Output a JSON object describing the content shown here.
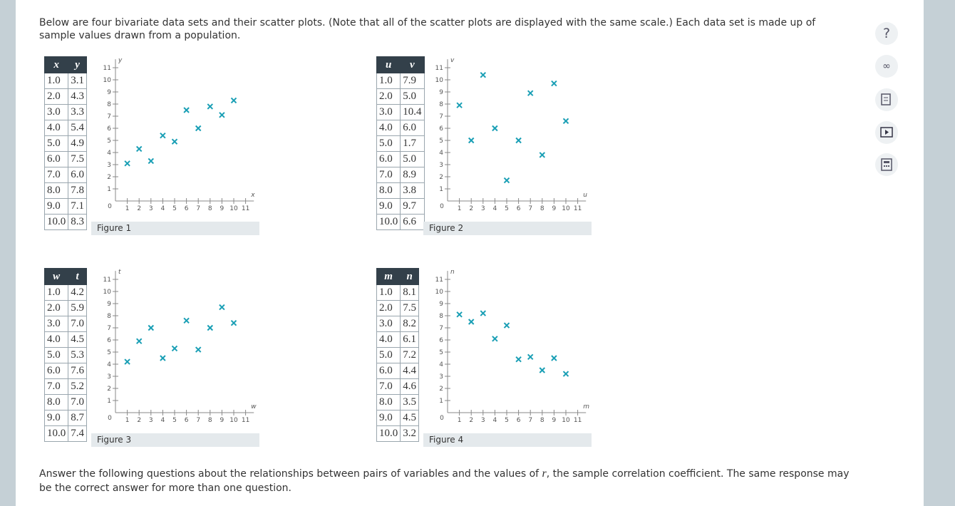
{
  "intro": "Below are four bivariate data sets and their scatter plots. (Note that all of the scatter plots are displayed with the same scale.) Each data set is made up of sample values drawn from a population.",
  "axis": {
    "lim": [
      0,
      11.7
    ],
    "ticks": [
      0,
      1,
      2,
      3,
      4,
      5,
      6,
      7,
      8,
      9,
      10,
      11
    ]
  },
  "figures": [
    {
      "columns": [
        "x",
        "y"
      ],
      "rows": [
        [
          "1.0",
          "3.1"
        ],
        [
          "2.0",
          "4.3"
        ],
        [
          "3.0",
          "3.3"
        ],
        [
          "4.0",
          "5.4"
        ],
        [
          "5.0",
          "4.9"
        ],
        [
          "6.0",
          "7.5"
        ],
        [
          "7.0",
          "6.0"
        ],
        [
          "8.0",
          "7.8"
        ],
        [
          "9.0",
          "7.1"
        ],
        [
          "10.0",
          "8.3"
        ]
      ],
      "caption": "Figure 1"
    },
    {
      "columns": [
        "u",
        "v"
      ],
      "rows": [
        [
          "1.0",
          "7.9"
        ],
        [
          "2.0",
          "5.0"
        ],
        [
          "3.0",
          "10.4"
        ],
        [
          "4.0",
          "6.0"
        ],
        [
          "5.0",
          "1.7"
        ],
        [
          "6.0",
          "5.0"
        ],
        [
          "7.0",
          "8.9"
        ],
        [
          "8.0",
          "3.8"
        ],
        [
          "9.0",
          "9.7"
        ],
        [
          "10.0",
          "6.6"
        ]
      ],
      "caption": "Figure 2"
    },
    {
      "columns": [
        "w",
        "t"
      ],
      "rows": [
        [
          "1.0",
          "4.2"
        ],
        [
          "2.0",
          "5.9"
        ],
        [
          "3.0",
          "7.0"
        ],
        [
          "4.0",
          "4.5"
        ],
        [
          "5.0",
          "5.3"
        ],
        [
          "6.0",
          "7.6"
        ],
        [
          "7.0",
          "5.2"
        ],
        [
          "8.0",
          "7.0"
        ],
        [
          "9.0",
          "8.7"
        ],
        [
          "10.0",
          "7.4"
        ]
      ],
      "caption": "Figure 3"
    },
    {
      "columns": [
        "m",
        "n"
      ],
      "rows": [
        [
          "1.0",
          "8.1"
        ],
        [
          "2.0",
          "7.5"
        ],
        [
          "3.0",
          "8.2"
        ],
        [
          "4.0",
          "6.1"
        ],
        [
          "5.0",
          "7.2"
        ],
        [
          "6.0",
          "4.4"
        ],
        [
          "7.0",
          "4.6"
        ],
        [
          "8.0",
          "3.5"
        ],
        [
          "9.0",
          "4.5"
        ],
        [
          "10.0",
          "3.2"
        ]
      ],
      "caption": "Figure 4"
    }
  ],
  "closing_before": "Answer the following questions about the relationships between pairs of variables and the values of ",
  "closing_var": "r",
  "closing_after": ", the sample correlation coefficient. The same response may be the correct answer for more than one question.",
  "help": "?"
}
